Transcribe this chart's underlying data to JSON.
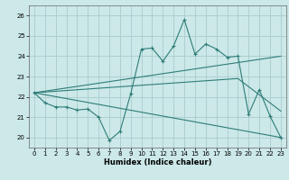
{
  "xlabel": "Humidex (Indice chaleur)",
  "bg_color": "#cce8e8",
  "grid_color": "#aacccc",
  "line_color": "#2d7d78",
  "xlim": [
    -0.5,
    23.5
  ],
  "ylim": [
    19.5,
    26.5
  ],
  "xticks": [
    0,
    1,
    2,
    3,
    4,
    5,
    6,
    7,
    8,
    9,
    10,
    11,
    12,
    13,
    14,
    15,
    16,
    17,
    18,
    19,
    20,
    21,
    22,
    23
  ],
  "yticks": [
    20,
    21,
    22,
    23,
    24,
    25,
    26
  ],
  "line1_x": [
    0,
    1,
    2,
    3,
    4,
    5,
    6,
    7,
    8,
    9,
    10,
    11,
    12,
    13,
    14,
    15,
    16,
    17,
    18,
    19,
    20,
    21,
    22,
    23
  ],
  "line1_y": [
    22.2,
    21.7,
    21.5,
    21.5,
    21.35,
    21.4,
    21.0,
    19.85,
    20.3,
    22.15,
    24.35,
    24.4,
    23.75,
    24.5,
    25.8,
    24.1,
    24.6,
    24.35,
    23.95,
    24.0,
    21.15,
    22.35,
    21.05,
    20.0
  ],
  "line2_x": [
    0,
    23
  ],
  "line2_y": [
    22.2,
    24.0
  ],
  "line3_x": [
    0,
    19,
    23
  ],
  "line3_y": [
    22.2,
    22.9,
    21.3
  ],
  "line4_x": [
    0,
    23
  ],
  "line4_y": [
    22.2,
    20.0
  ]
}
